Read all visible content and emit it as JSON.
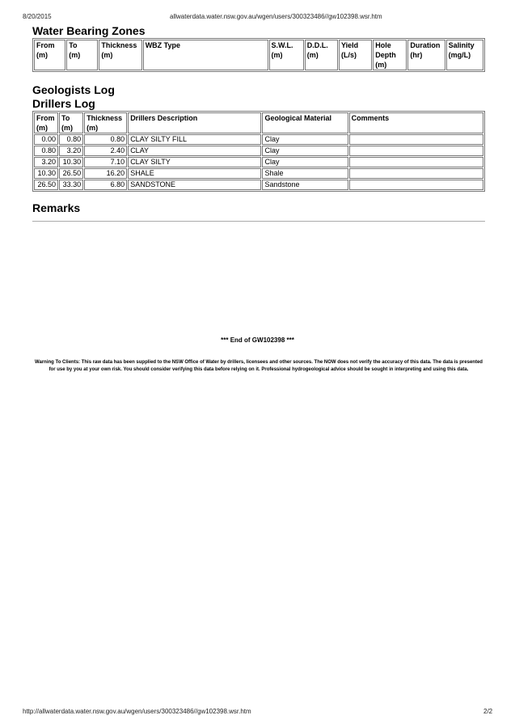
{
  "print_header": {
    "date": "8/20/2015",
    "url": "allwaterdata.water.nsw.gov.au/wgen/users/300323486//gw102398.wsr.htm"
  },
  "wbz": {
    "title": "Water Bearing Zones",
    "columns": [
      [
        "From",
        "(m)"
      ],
      [
        "To",
        "(m)"
      ],
      [
        "Thickness",
        "(m)"
      ],
      [
        "WBZ Type",
        ""
      ],
      [
        "S.W.L.",
        "(m)"
      ],
      [
        "D.D.L.",
        "(m)"
      ],
      [
        "Yield",
        "(L/s)"
      ],
      [
        "Hole",
        "Depth",
        "(m)"
      ],
      [
        "Duration",
        "(hr)"
      ],
      [
        "Salinity",
        "(mg/L)"
      ]
    ]
  },
  "geologists_log": {
    "title": "Geologists Log"
  },
  "drillers_log": {
    "title": "Drillers Log",
    "columns": [
      [
        "From",
        "(m)"
      ],
      [
        "To",
        "(m)"
      ],
      [
        "Thickness",
        "(m)"
      ],
      [
        "Drillers Description"
      ],
      [
        "Geological Material"
      ],
      [
        "Comments"
      ]
    ],
    "rows": [
      [
        "0.00",
        "0.80",
        "0.80",
        "CLAY SILTY FILL",
        "Clay",
        ""
      ],
      [
        "0.80",
        "3.20",
        "2.40",
        "CLAY",
        "Clay",
        ""
      ],
      [
        "3.20",
        "10.30",
        "7.10",
        "CLAY SILTY",
        "Clay",
        ""
      ],
      [
        "10.30",
        "26.50",
        "16.20",
        "SHALE",
        "Shale",
        ""
      ],
      [
        "26.50",
        "33.30",
        "6.80",
        "SANDSTONE",
        "Sandstone",
        ""
      ]
    ]
  },
  "remarks": {
    "title": "Remarks"
  },
  "end_text": "*** End of GW102398 ***",
  "warning": "Warning To Clients: This raw data has been supplied to the NSW Office of Water by drillers, licensees and other sources. The NOW does not verify the accuracy of this data. The data is presented for use by you at your own risk. You should consider verifying this data before relying on it. Professional hydrogeological advice should be sought in interpreting and using this data.",
  "print_footer": {
    "url": "http://allwaterdata.water.nsw.gov.au/wgen/users/300323486//gw102398.wsr.htm",
    "page": "2/2"
  }
}
